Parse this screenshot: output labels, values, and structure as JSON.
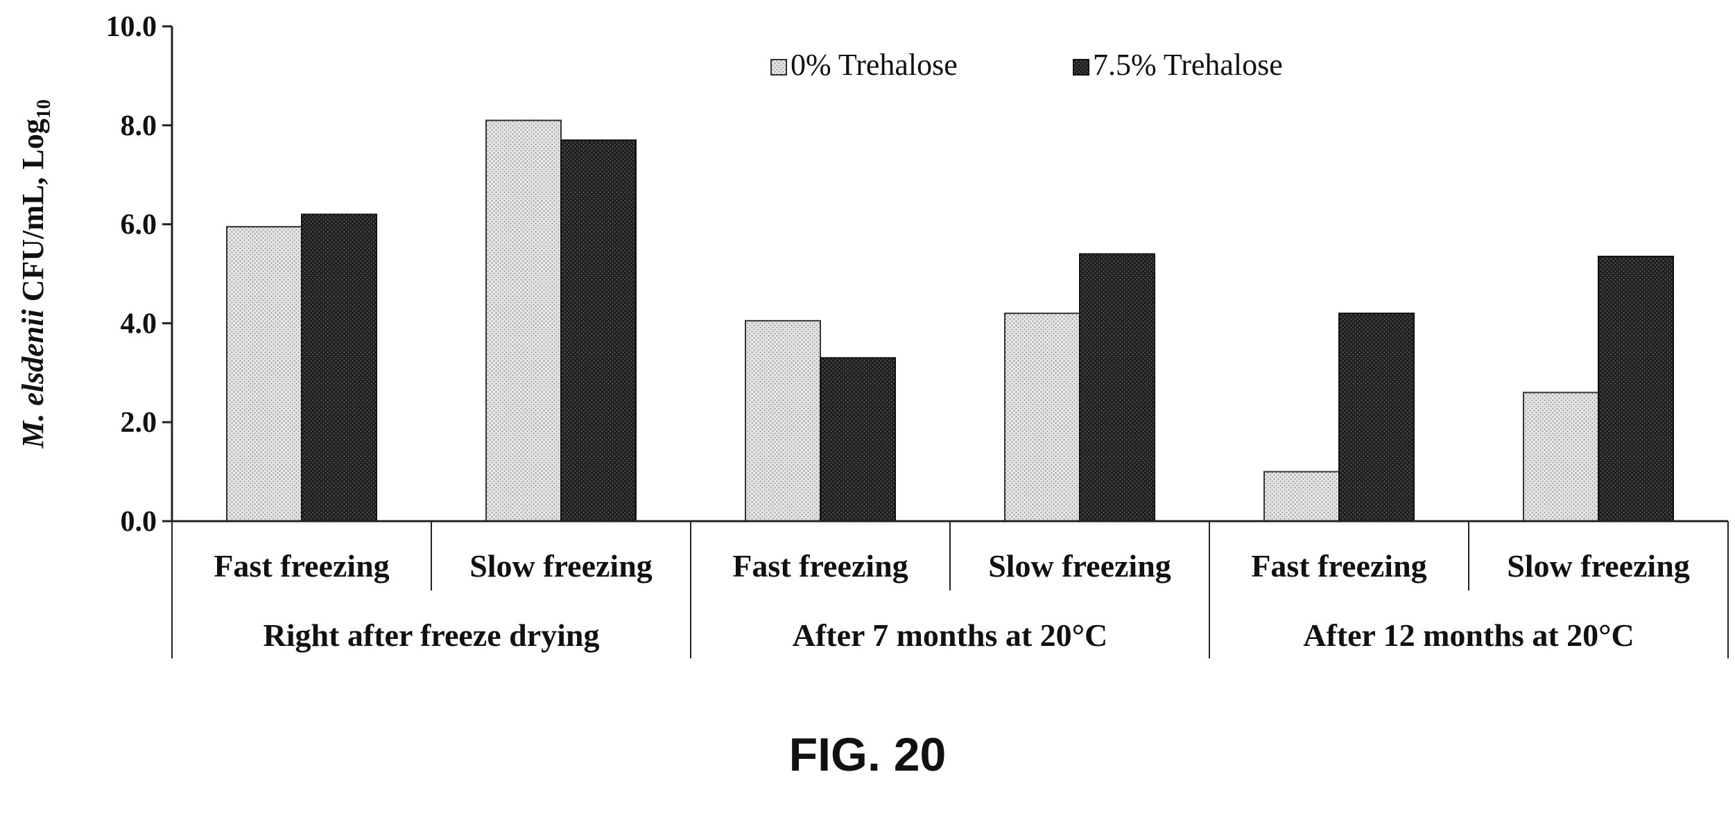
{
  "figure_label": "FIG. 20",
  "colors": {
    "series_0": "#d4d4d4",
    "series_1": "#2e2e2e",
    "axis": "#222222",
    "text": "#111111"
  },
  "chart_data": {
    "type": "bar",
    "ylabel": {
      "italic": "M. elsdenii",
      "rest": " CFU/mL, Log",
      "subscript": "10"
    },
    "ylim": [
      0,
      10
    ],
    "yticks": [
      "0.0",
      "2.0",
      "4.0",
      "6.0",
      "8.0",
      "10.0"
    ],
    "grid": false,
    "legend_position": "top-right",
    "categories": [
      "Fast freezing",
      "Slow freezing",
      "Fast freezing",
      "Slow freezing",
      "Fast freezing",
      "Slow freezing"
    ],
    "groups": [
      {
        "label": "Right after freeze drying",
        "span": 2
      },
      {
        "label": "After 7 months at 20°C",
        "span": 2
      },
      {
        "label": "After 12 months at 20°C",
        "span": 2
      }
    ],
    "series": [
      {
        "name": "0% Trehalose",
        "values": [
          5.95,
          8.1,
          4.05,
          4.2,
          1.0,
          2.6
        ]
      },
      {
        "name": "7.5% Trehalose",
        "values": [
          6.2,
          7.7,
          3.3,
          5.4,
          4.2,
          5.35
        ]
      }
    ]
  }
}
